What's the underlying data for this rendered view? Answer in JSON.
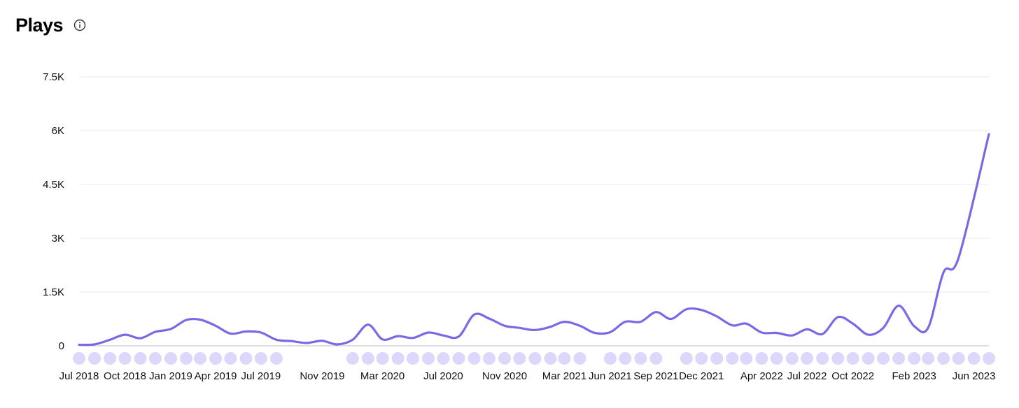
{
  "header": {
    "title": "Plays",
    "info_icon": "info-circle-icon"
  },
  "colors": {
    "line": "#7b68e6",
    "dots": "#ddd7fb",
    "grid": "#e8e8e8",
    "baseline": "#bdbdbd"
  },
  "chart_data": {
    "type": "line",
    "title": "Plays",
    "xlabel": "",
    "ylabel": "",
    "ylim": [
      0,
      7500
    ],
    "yticks": [
      0,
      1500,
      3000,
      4500,
      6000,
      7500
    ],
    "yticklabels": [
      "0",
      "1.5K",
      "3K",
      "4.5K",
      "6K",
      "7.5K"
    ],
    "grid": true,
    "xlim": [
      "2018-07-01",
      "2023-07-01"
    ],
    "xticklabels": [
      {
        "date": "2018-07-01",
        "label": "Jul 2018"
      },
      {
        "date": "2018-10-01",
        "label": "Oct 2018"
      },
      {
        "date": "2019-01-01",
        "label": "Jan 2019"
      },
      {
        "date": "2019-04-01",
        "label": "Apr 2019"
      },
      {
        "date": "2019-07-01",
        "label": "Jul 2019"
      },
      {
        "date": "2019-11-01",
        "label": "Nov 2019"
      },
      {
        "date": "2020-03-01",
        "label": "Mar 2020"
      },
      {
        "date": "2020-07-01",
        "label": "Jul 2020"
      },
      {
        "date": "2020-11-01",
        "label": "Nov 2020"
      },
      {
        "date": "2021-03-01",
        "label": "Mar 2021"
      },
      {
        "date": "2021-06-01",
        "label": "Jun 2021"
      },
      {
        "date": "2021-09-01",
        "label": "Sep 2021"
      },
      {
        "date": "2021-12-01",
        "label": "Dec 2021"
      },
      {
        "date": "2022-04-01",
        "label": "Apr 2022"
      },
      {
        "date": "2022-07-01",
        "label": "Jul 2022"
      },
      {
        "date": "2022-10-01",
        "label": "Oct 2022"
      },
      {
        "date": "2023-02-01",
        "label": "Feb 2023"
      },
      {
        "date": "2023-06-01",
        "label": "Jun 2023"
      }
    ],
    "series": [
      {
        "points": [
          [
            "2018-07-01",
            30
          ],
          [
            "2018-08-01",
            40
          ],
          [
            "2018-09-01",
            170
          ],
          [
            "2018-10-01",
            310
          ],
          [
            "2018-11-01",
            210
          ],
          [
            "2018-12-01",
            390
          ],
          [
            "2019-01-01",
            470
          ],
          [
            "2019-02-01",
            720
          ],
          [
            "2019-03-01",
            730
          ],
          [
            "2019-04-01",
            560
          ],
          [
            "2019-05-01",
            340
          ],
          [
            "2019-06-01",
            400
          ],
          [
            "2019-07-01",
            370
          ],
          [
            "2019-08-01",
            170
          ],
          [
            "2019-09-01",
            130
          ],
          [
            "2019-10-01",
            80
          ],
          [
            "2019-11-01",
            140
          ],
          [
            "2019-12-01",
            40
          ],
          [
            "2020-01-01",
            170
          ],
          [
            "2020-02-01",
            590
          ],
          [
            "2020-03-01",
            180
          ],
          [
            "2020-04-01",
            270
          ],
          [
            "2020-05-01",
            220
          ],
          [
            "2020-06-01",
            370
          ],
          [
            "2020-07-01",
            290
          ],
          [
            "2020-08-01",
            260
          ],
          [
            "2020-09-01",
            870
          ],
          [
            "2020-10-01",
            760
          ],
          [
            "2020-11-01",
            560
          ],
          [
            "2020-12-01",
            500
          ],
          [
            "2021-01-01",
            440
          ],
          [
            "2021-02-01",
            530
          ],
          [
            "2021-03-01",
            670
          ],
          [
            "2021-04-01",
            560
          ],
          [
            "2021-05-01",
            360
          ],
          [
            "2021-06-01",
            380
          ],
          [
            "2021-07-01",
            670
          ],
          [
            "2021-08-01",
            670
          ],
          [
            "2021-09-01",
            940
          ],
          [
            "2021-10-01",
            750
          ],
          [
            "2021-11-01",
            1020
          ],
          [
            "2021-12-01",
            1000
          ],
          [
            "2022-01-01",
            820
          ],
          [
            "2022-02-01",
            570
          ],
          [
            "2022-03-01",
            620
          ],
          [
            "2022-04-01",
            370
          ],
          [
            "2022-05-01",
            360
          ],
          [
            "2022-06-01",
            290
          ],
          [
            "2022-07-01",
            460
          ],
          [
            "2022-08-01",
            330
          ],
          [
            "2022-09-01",
            800
          ],
          [
            "2022-10-01",
            620
          ],
          [
            "2022-11-01",
            310
          ],
          [
            "2022-12-01",
            500
          ],
          [
            "2023-01-01",
            1120
          ],
          [
            "2023-02-01",
            550
          ],
          [
            "2023-03-01",
            500
          ],
          [
            "2023-04-01",
            2050
          ],
          [
            "2023-05-01",
            2450
          ],
          [
            "2023-07-01",
            5900
          ]
        ]
      }
    ],
    "marker_dates": [
      "2018-07-01",
      "2018-08-01",
      "2018-09-01",
      "2018-10-01",
      "2018-11-01",
      "2018-12-01",
      "2019-01-01",
      "2019-02-01",
      "2019-03-01",
      "2019-04-01",
      "2019-05-01",
      "2019-06-01",
      "2019-07-01",
      "2019-08-01",
      "2020-01-01",
      "2020-02-01",
      "2020-03-01",
      "2020-04-01",
      "2020-05-01",
      "2020-06-01",
      "2020-07-01",
      "2020-08-01",
      "2020-09-01",
      "2020-10-01",
      "2020-11-01",
      "2020-12-01",
      "2021-01-01",
      "2021-02-01",
      "2021-03-01",
      "2021-04-01",
      "2021-06-01",
      "2021-07-01",
      "2021-08-01",
      "2021-09-01",
      "2021-11-01",
      "2021-12-01",
      "2022-01-01",
      "2022-02-01",
      "2022-03-01",
      "2022-04-01",
      "2022-05-01",
      "2022-06-01",
      "2022-07-01",
      "2022-08-01",
      "2022-09-01",
      "2022-10-01",
      "2022-11-01",
      "2022-12-01",
      "2023-01-01",
      "2023-02-01",
      "2023-03-01",
      "2023-04-01",
      "2023-05-01",
      "2023-06-01",
      "2023-07-01"
    ]
  }
}
